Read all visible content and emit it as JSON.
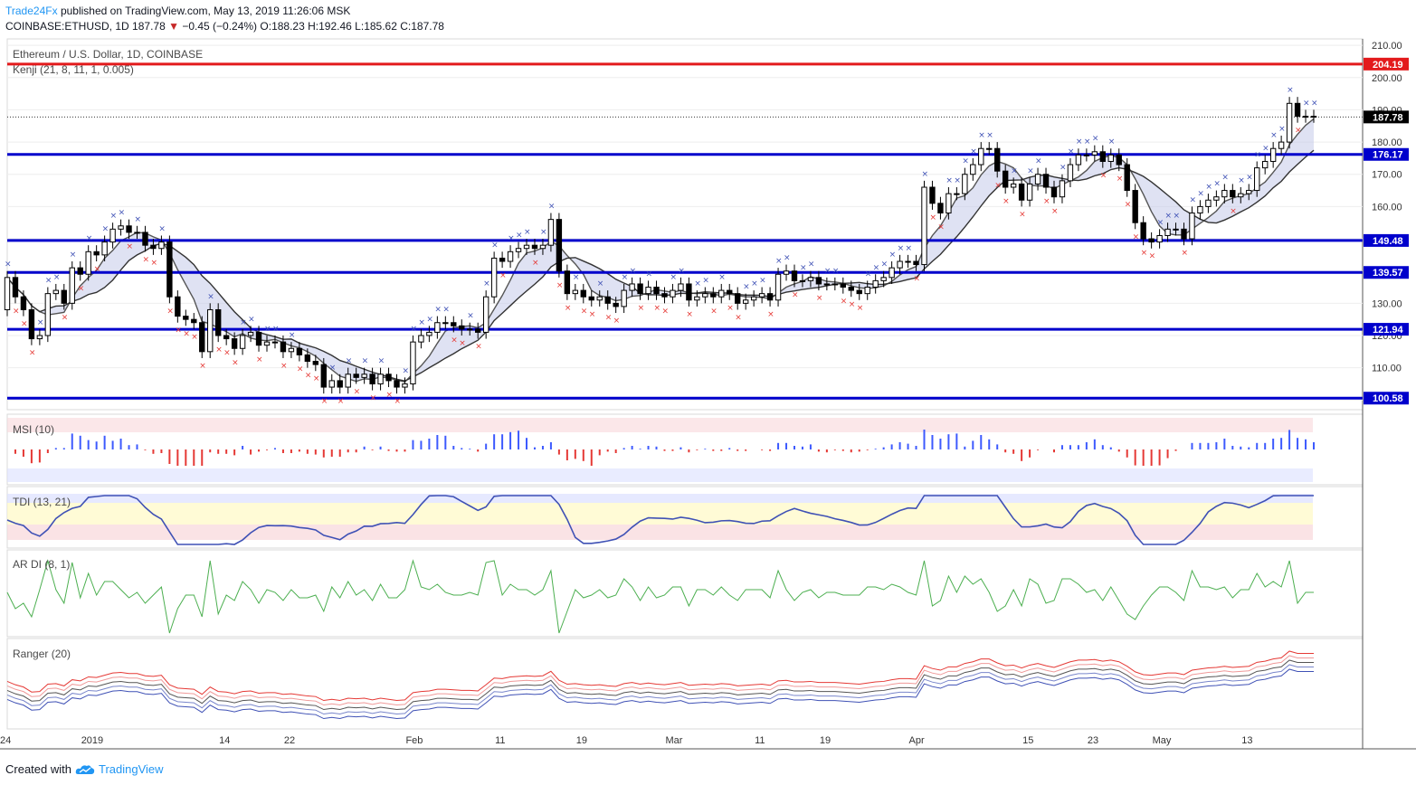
{
  "header": {
    "brand": "Trade24Fx",
    "published": "published on TradingView.com, May 13, 2019 11:26:06 MSK",
    "symbol": "COINBASE:ETHUSD, 1D",
    "last": "187.78",
    "change": "−0.45 (−0.24%)",
    "open_label": "O:",
    "open": "188.23",
    "high_label": "H:",
    "high": "192.46",
    "low_label": "L:",
    "low": "185.62",
    "close_label": "C:",
    "close": "187.78"
  },
  "chart_title": "Ethereum / U.S. Dollar, 1D, COINBASE",
  "indicator_main": "Kenji (21, 8, 11, 1, 0.005)",
  "panes": {
    "msi": "MSI (10)",
    "tdi": "TDI (13, 21)",
    "ardi": "AR DI (8, 1)",
    "ranger": "Ranger (20)"
  },
  "footer": {
    "created": "Created with",
    "tv": "TradingView"
  },
  "colors": {
    "up": "#ffffff",
    "down": "#000000",
    "level": "#0000cc",
    "resistance": "#e31a1c",
    "buy": "#3f51b5",
    "sell": "#e53935",
    "green": "#4caf50"
  },
  "chart_data": {
    "type": "candlestick",
    "title": "Ethereum / U.S. Dollar, 1D, COINBASE",
    "y_ticks": [
      100,
      110,
      120,
      130,
      140,
      150,
      160,
      170,
      180,
      190,
      200,
      210
    ],
    "y_tick_labels": [
      "100.00",
      "110.00",
      "120.00",
      "130.00",
      "140.00",
      "150.00",
      "160.00",
      "170.00",
      "180.00",
      "190.00",
      "200.00",
      "210.00"
    ],
    "ylim": [
      97,
      212
    ],
    "x_labels": [
      "24",
      "2019",
      "14",
      "22",
      "Feb",
      "11",
      "19",
      "Mar",
      "11",
      "19",
      "Apr",
      "15",
      "23",
      "May",
      "13"
    ],
    "x_label_index": [
      0,
      10,
      27,
      35,
      50,
      61,
      71,
      82,
      93,
      101,
      112,
      126,
      134,
      142,
      153
    ],
    "horizontal_levels": [
      {
        "value": 204.19,
        "label": "204.19",
        "color": "#e31a1c"
      },
      {
        "value": 176.17,
        "label": "176.17",
        "color": "#0000cc"
      },
      {
        "value": 149.48,
        "label": "149.48",
        "color": "#0000cc"
      },
      {
        "value": 139.57,
        "label": "139.57",
        "color": "#0000cc"
      },
      {
        "value": 121.94,
        "label": "121.94",
        "color": "#0000cc"
      },
      {
        "value": 100.58,
        "label": "100.58",
        "color": "#0000cc"
      }
    ],
    "last_price": {
      "value": 187.78,
      "label": "187.78"
    },
    "close": [
      138,
      132,
      128,
      119,
      120,
      133,
      134,
      130,
      141,
      139,
      146,
      145,
      149,
      153,
      154,
      152,
      152,
      148,
      147,
      149,
      132,
      126,
      125,
      124,
      115,
      128,
      120,
      119,
      116,
      120,
      121,
      117,
      118,
      118,
      115,
      116,
      114,
      112,
      111,
      104,
      106,
      104,
      108,
      107,
      108,
      105,
      108,
      106,
      104,
      105,
      118,
      120,
      121,
      124,
      124,
      123,
      122,
      122,
      121,
      132,
      144,
      143,
      146,
      147,
      148,
      147,
      148,
      156,
      140,
      133,
      134,
      132,
      131,
      132,
      130,
      129,
      134,
      136,
      133,
      135,
      133,
      132,
      134,
      136,
      131,
      132,
      133,
      132,
      134,
      133,
      130,
      131,
      132,
      133,
      131,
      139,
      140,
      137,
      137,
      138,
      136,
      136,
      136,
      135,
      134,
      133,
      135,
      137,
      138,
      141,
      143,
      143,
      142,
      166,
      161,
      158,
      164,
      164,
      170,
      173,
      178,
      178,
      171,
      166,
      167,
      162,
      167,
      170,
      166,
      163,
      168,
      173,
      176,
      176,
      177,
      174,
      176,
      173,
      165,
      155,
      150,
      149,
      151,
      153,
      153,
      150,
      158,
      160,
      162,
      163,
      165,
      163,
      164,
      165,
      172,
      174,
      178,
      180,
      192,
      188,
      188,
      188
    ],
    "open": [
      128,
      138,
      132,
      128,
      119,
      120,
      133,
      134,
      130,
      141,
      139,
      146,
      145,
      149,
      153,
      154,
      152,
      152,
      148,
      147,
      149,
      132,
      126,
      125,
      124,
      115,
      128,
      120,
      119,
      116,
      120,
      121,
      117,
      118,
      118,
      115,
      116,
      114,
      112,
      111,
      104,
      106,
      104,
      108,
      107,
      108,
      105,
      108,
      106,
      104,
      105,
      118,
      120,
      121,
      124,
      124,
      123,
      122,
      122,
      121,
      132,
      144,
      143,
      146,
      147,
      148,
      147,
      148,
      156,
      140,
      133,
      134,
      132,
      131,
      132,
      130,
      129,
      134,
      136,
      133,
      135,
      133,
      132,
      134,
      136,
      131,
      132,
      133,
      132,
      134,
      133,
      130,
      131,
      132,
      133,
      131,
      139,
      140,
      137,
      137,
      138,
      136,
      136,
      136,
      135,
      134,
      133,
      135,
      137,
      138,
      141,
      143,
      143,
      142,
      166,
      161,
      158,
      164,
      164,
      170,
      173,
      178,
      178,
      171,
      166,
      167,
      162,
      167,
      170,
      166,
      163,
      168,
      173,
      176,
      176,
      177,
      174,
      176,
      173,
      165,
      155,
      150,
      149,
      151,
      153,
      153,
      150,
      158,
      160,
      162,
      163,
      165,
      163,
      164,
      165,
      172,
      174,
      178,
      180,
      192,
      188,
      188
    ]
  }
}
